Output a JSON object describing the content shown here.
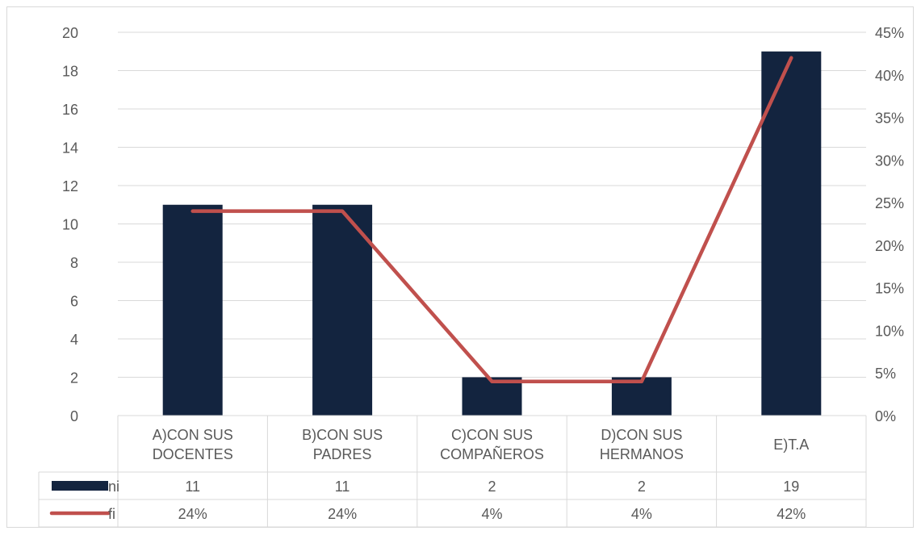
{
  "chart_data": {
    "type": "bar",
    "categories": [
      [
        "A)CON SUS",
        "DOCENTES"
      ],
      [
        "B)CON SUS",
        "PADRES"
      ],
      [
        "C)CON SUS",
        "COMPAÑEROS"
      ],
      [
        "D)CON SUS",
        "HERMANOS"
      ],
      [
        "E)T.A"
      ]
    ],
    "series": [
      {
        "name": "ni",
        "type": "bar",
        "axis": "left",
        "color": "#13243f",
        "values": [
          11,
          11,
          2,
          2,
          19
        ],
        "labels": [
          "11",
          "11",
          "2",
          "2",
          "19"
        ]
      },
      {
        "name": "fi",
        "type": "line",
        "axis": "right",
        "color": "#c0504d",
        "values": [
          0.24,
          0.24,
          0.04,
          0.04,
          0.42
        ],
        "labels": [
          "24%",
          "24%",
          "4%",
          "4%",
          "42%"
        ]
      }
    ],
    "y_left": {
      "min": 0,
      "max": 20,
      "step": 2,
      "ticks": [
        "0",
        "2",
        "4",
        "6",
        "8",
        "10",
        "12",
        "14",
        "16",
        "18",
        "20"
      ]
    },
    "y_right": {
      "min": 0,
      "max": 0.45,
      "step": 0.05,
      "ticks": [
        "0%",
        "5%",
        "10%",
        "15%",
        "20%",
        "25%",
        "30%",
        "35%",
        "40%",
        "45%"
      ]
    },
    "grid": true,
    "data_table": true,
    "title": "",
    "xlabel": "",
    "ylabel": ""
  }
}
